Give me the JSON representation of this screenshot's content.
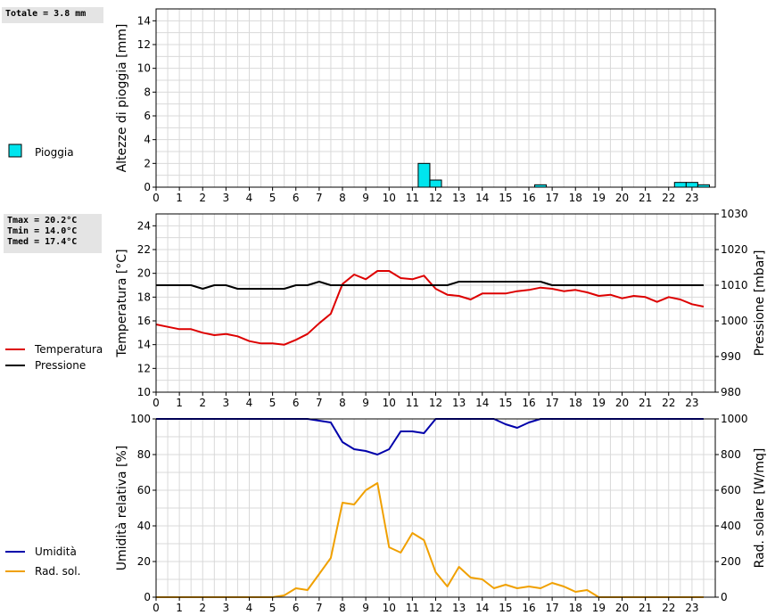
{
  "stats": {
    "rain_total": "Totale = 3.8 mm",
    "tmax": "Tmax = 20.2°C",
    "tmin": "Tmin = 14.0°C",
    "tmed": "Tmed = 17.4°C"
  },
  "colors": {
    "rain": "#00e5ee",
    "temperature": "#dd0000",
    "pressure": "#000000",
    "humidity": "#0000aa",
    "radiation": "#f0a000",
    "grid": "#d9d9d9"
  },
  "chart_data": [
    {
      "type": "bar",
      "ylabel": "Altezze di pioggia [mm]",
      "ylim": [
        0,
        15
      ],
      "yticks": [
        0,
        2,
        4,
        6,
        8,
        10,
        12,
        14
      ],
      "xlim": [
        0,
        24
      ],
      "xticks": [
        0,
        1,
        2,
        3,
        4,
        5,
        6,
        7,
        8,
        9,
        10,
        11,
        12,
        13,
        14,
        15,
        16,
        17,
        18,
        19,
        20,
        21,
        22,
        23
      ],
      "grid": true,
      "legend": [
        {
          "name": "Pioggia",
          "color": "#00e5ee"
        }
      ],
      "series": [
        {
          "name": "Pioggia",
          "x": [
            11.5,
            12.0,
            16.5,
            22.5,
            23.0,
            23.5
          ],
          "values": [
            2.0,
            0.6,
            0.2,
            0.4,
            0.4,
            0.2
          ]
        }
      ]
    },
    {
      "type": "line",
      "ylabel": "Temperatura [°C]",
      "ylabel_right": "Pressione [mbar]",
      "ylim": [
        10,
        25
      ],
      "yticks": [
        10,
        12,
        14,
        16,
        18,
        20,
        22,
        24
      ],
      "ylim_right": [
        980,
        1030
      ],
      "yticks_right": [
        980,
        990,
        1000,
        1010,
        1020,
        1030
      ],
      "xlim": [
        0,
        24
      ],
      "xticks": [
        0,
        1,
        2,
        3,
        4,
        5,
        6,
        7,
        8,
        9,
        10,
        11,
        12,
        13,
        14,
        15,
        16,
        17,
        18,
        19,
        20,
        21,
        22,
        23
      ],
      "grid": true,
      "legend": [
        {
          "name": "Temperatura",
          "color": "#dd0000"
        },
        {
          "name": "Pressione",
          "color": "#000000"
        }
      ],
      "series": [
        {
          "name": "Temperatura",
          "axis": "left",
          "x": [
            0,
            0.5,
            1,
            1.5,
            2,
            2.5,
            3,
            3.5,
            4,
            4.5,
            5,
            5.5,
            6,
            6.5,
            7,
            7.5,
            8,
            8.5,
            9,
            9.5,
            10,
            10.5,
            11,
            11.5,
            12,
            12.5,
            13,
            13.5,
            14,
            14.5,
            15,
            15.5,
            16,
            16.5,
            17,
            17.5,
            18,
            18.5,
            19,
            19.5,
            20,
            20.5,
            21,
            21.5,
            22,
            22.5,
            23,
            23.5
          ],
          "values": [
            15.7,
            15.5,
            15.3,
            15.3,
            15.0,
            14.8,
            14.9,
            14.7,
            14.3,
            14.1,
            14.1,
            14.0,
            14.4,
            14.9,
            15.8,
            16.6,
            19.1,
            19.9,
            19.5,
            20.2,
            20.2,
            19.6,
            19.5,
            19.8,
            18.7,
            18.2,
            18.1,
            17.8,
            18.3,
            18.3,
            18.3,
            18.5,
            18.6,
            18.8,
            18.7,
            18.5,
            18.6,
            18.4,
            18.1,
            18.2,
            17.9,
            18.1,
            18.0,
            17.6,
            18.0,
            17.8,
            17.4,
            17.2
          ]
        },
        {
          "name": "Pressione",
          "axis": "right",
          "x": [
            0,
            0.5,
            1,
            1.5,
            2,
            2.5,
            3,
            3.5,
            4,
            4.5,
            5,
            5.5,
            6,
            6.5,
            7,
            7.5,
            8,
            8.5,
            9,
            9.5,
            10,
            10.5,
            11,
            11.5,
            12,
            12.5,
            13,
            13.5,
            14,
            14.5,
            15,
            15.5,
            16,
            16.5,
            17,
            17.5,
            18,
            18.5,
            19,
            19.5,
            20,
            20.5,
            21,
            21.5,
            22,
            22.5,
            23,
            23.5
          ],
          "values": [
            1010,
            1010,
            1010,
            1010,
            1009,
            1010,
            1010,
            1009,
            1009,
            1009,
            1009,
            1009,
            1010,
            1010,
            1011,
            1010,
            1010,
            1010,
            1010,
            1010,
            1010,
            1010,
            1010,
            1010,
            1010,
            1010,
            1011,
            1011,
            1011,
            1011,
            1011,
            1011,
            1011,
            1011,
            1010,
            1010,
            1010,
            1010,
            1010,
            1010,
            1010,
            1010,
            1010,
            1010,
            1010,
            1010,
            1010,
            1010
          ]
        }
      ]
    },
    {
      "type": "line",
      "ylabel": "Umidità relativa [%]",
      "ylabel_right": "Rad. solare [W/mq]",
      "ylim": [
        0,
        100
      ],
      "yticks": [
        0,
        20,
        40,
        60,
        80,
        100
      ],
      "ylim_right": [
        0,
        1000
      ],
      "yticks_right": [
        0,
        200,
        400,
        600,
        800,
        1000
      ],
      "xlim": [
        0,
        24
      ],
      "xticks": [
        0,
        1,
        2,
        3,
        4,
        5,
        6,
        7,
        8,
        9,
        10,
        11,
        12,
        13,
        14,
        15,
        16,
        17,
        18,
        19,
        20,
        21,
        22,
        23
      ],
      "grid": true,
      "legend": [
        {
          "name": "Umidità",
          "color": "#0000aa"
        },
        {
          "name": "Rad. sol.",
          "color": "#f0a000"
        }
      ],
      "series": [
        {
          "name": "Umidità",
          "axis": "left",
          "x": [
            0,
            0.5,
            1,
            1.5,
            2,
            2.5,
            3,
            3.5,
            4,
            4.5,
            5,
            5.5,
            6,
            6.5,
            7,
            7.5,
            8,
            8.5,
            9,
            9.5,
            10,
            10.5,
            11,
            11.5,
            12,
            12.5,
            13,
            13.5,
            14,
            14.5,
            15,
            15.5,
            16,
            16.5,
            17,
            17.5,
            18,
            18.5,
            19,
            19.5,
            20,
            20.5,
            21,
            21.5,
            22,
            22.5,
            23,
            23.5
          ],
          "values": [
            100,
            100,
            100,
            100,
            100,
            100,
            100,
            100,
            100,
            100,
            100,
            100,
            100,
            100,
            99,
            98,
            87,
            83,
            82,
            80,
            83,
            93,
            93,
            92,
            100,
            100,
            100,
            100,
            100,
            100,
            97,
            95,
            98,
            100,
            100,
            100,
            100,
            100,
            100,
            100,
            100,
            100,
            100,
            100,
            100,
            100,
            100,
            100
          ]
        },
        {
          "name": "Rad. sol.",
          "axis": "right",
          "x": [
            0,
            0.5,
            1,
            1.5,
            2,
            2.5,
            3,
            3.5,
            4,
            4.5,
            5,
            5.5,
            6,
            6.5,
            7,
            7.5,
            8,
            8.5,
            9,
            9.5,
            10,
            10.5,
            11,
            11.5,
            12,
            12.5,
            13,
            13.5,
            14,
            14.5,
            15,
            15.5,
            16,
            16.5,
            17,
            17.5,
            18,
            18.5,
            19,
            19.5,
            20,
            20.5,
            21,
            21.5,
            22,
            22.5,
            23,
            23.5
          ],
          "values": [
            0,
            0,
            0,
            0,
            0,
            0,
            0,
            0,
            0,
            0,
            0,
            10,
            50,
            40,
            130,
            220,
            530,
            520,
            600,
            640,
            280,
            250,
            360,
            320,
            140,
            60,
            170,
            110,
            100,
            50,
            70,
            50,
            60,
            50,
            80,
            60,
            30,
            40,
            0,
            0,
            0,
            0,
            0,
            0,
            0,
            0,
            0,
            0
          ]
        }
      ]
    }
  ]
}
